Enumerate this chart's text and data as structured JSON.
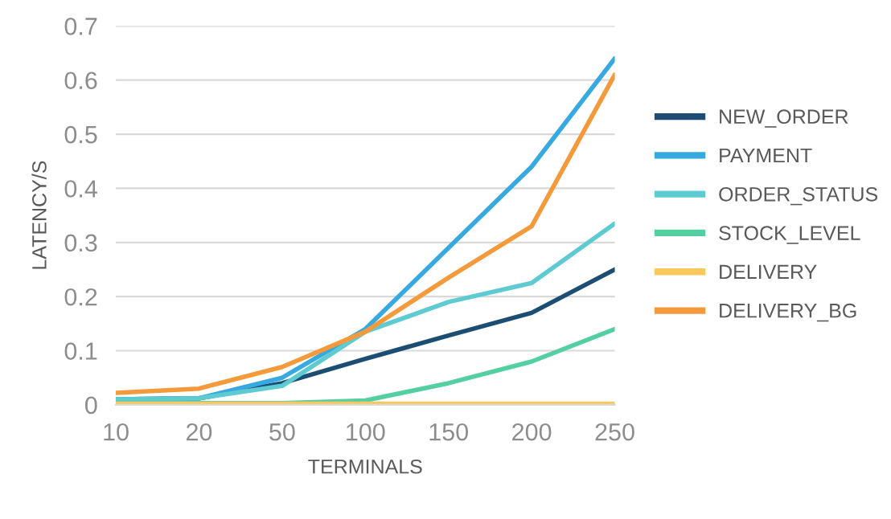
{
  "chart_data": {
    "type": "line",
    "xlabel": "TERMINALS",
    "ylabel": "LATENCY/S",
    "categories": [
      "10",
      "20",
      "50",
      "100",
      "150",
      "200",
      "250"
    ],
    "series": [
      {
        "name": "NEW_ORDER",
        "color": "#1c4e74",
        "values": [
          0.01,
          0.012,
          0.04,
          0.085,
          0.128,
          0.17,
          0.25
        ]
      },
      {
        "name": "PAYMENT",
        "color": "#36a9e1",
        "values": [
          0.01,
          0.012,
          0.05,
          0.14,
          0.29,
          0.44,
          0.64
        ]
      },
      {
        "name": "ORDER_STATUS",
        "color": "#5ecbd3",
        "values": [
          0.01,
          0.012,
          0.035,
          0.135,
          0.19,
          0.225,
          0.335
        ]
      },
      {
        "name": "STOCK_LEVEL",
        "color": "#54cfa2",
        "values": [
          0.003,
          0.003,
          0.003,
          0.008,
          0.04,
          0.08,
          0.14
        ]
      },
      {
        "name": "DELIVERY",
        "color": "#f8c95a",
        "values": [
          0.002,
          0.002,
          0.002,
          0.002,
          0.002,
          0.002,
          0.002
        ]
      },
      {
        "name": "DELIVERY_BG",
        "color": "#f49a3a",
        "values": [
          0.022,
          0.03,
          0.07,
          0.135,
          0.235,
          0.33,
          0.61
        ]
      }
    ],
    "ylim": [
      0,
      0.7
    ],
    "yticks": [
      0,
      0.1,
      0.2,
      0.3,
      0.4,
      0.5,
      0.6,
      0.7
    ],
    "grid": "y",
    "legend": "right",
    "marker": "none",
    "line_style": "solid"
  }
}
